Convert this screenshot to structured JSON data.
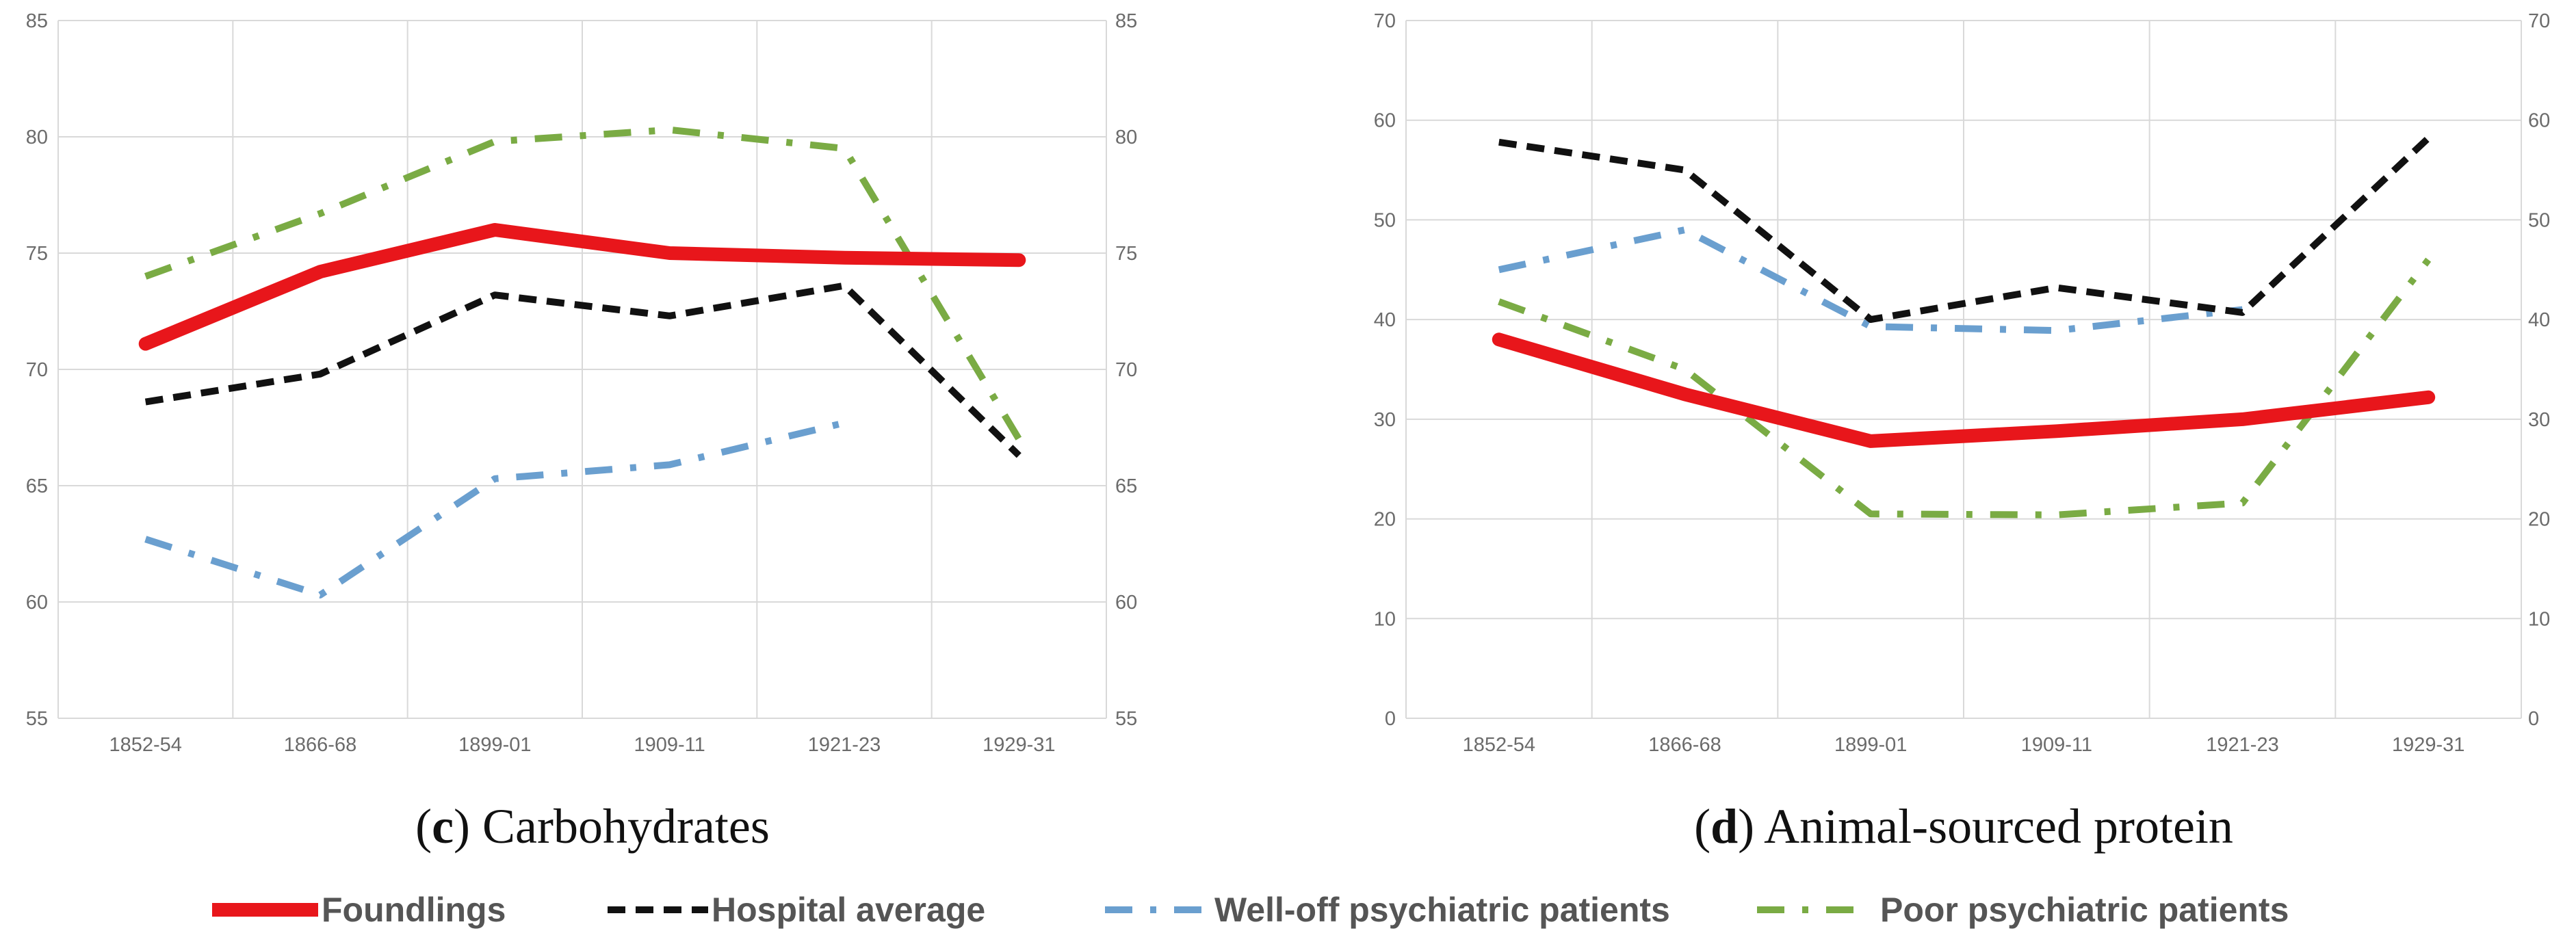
{
  "chart_data": [
    {
      "type": "line",
      "caption_letter": "c",
      "caption_text": " Carbohydrates",
      "categories": [
        "1852-54",
        "1866-68",
        "1899-01",
        "1909-11",
        "1921-23",
        "1929-31"
      ],
      "ylim": [
        55,
        85
      ],
      "yticks": [
        55,
        60,
        65,
        70,
        75,
        80,
        85
      ],
      "ytick_labels": [
        "55",
        "60",
        "65",
        "70",
        "75",
        "80",
        "85"
      ],
      "grid": true,
      "series": [
        {
          "key": "foundlings",
          "name": "Foundlings",
          "values": [
            71.1,
            74.2,
            76.0,
            75.0,
            74.8,
            74.7
          ]
        },
        {
          "key": "hospital",
          "name": "Hospital average",
          "values": [
            68.6,
            69.8,
            73.2,
            72.3,
            73.6,
            66.3
          ]
        },
        {
          "key": "welloff",
          "name": "Well-off psychiatric patients",
          "values": [
            62.7,
            60.3,
            65.3,
            65.9,
            67.7,
            null
          ]
        },
        {
          "key": "poor",
          "name": "Poor psychiatric patients",
          "values": [
            74.0,
            76.7,
            79.8,
            80.3,
            79.5,
            67.0
          ]
        }
      ]
    },
    {
      "type": "line",
      "caption_letter": "d",
      "caption_text": " Animal-sourced protein",
      "categories": [
        "1852-54",
        "1866-68",
        "1899-01",
        "1909-11",
        "1921-23",
        "1929-31"
      ],
      "ylim": [
        0,
        70
      ],
      "yticks": [
        0,
        10,
        20,
        30,
        40,
        50,
        60,
        70
      ],
      "ytick_labels": [
        "0",
        "10",
        "20",
        "30",
        "40",
        "50",
        "60",
        "70"
      ],
      "grid": true,
      "series": [
        {
          "key": "foundlings",
          "name": "Foundlings",
          "values": [
            38.0,
            32.5,
            27.8,
            28.8,
            30.0,
            32.2
          ]
        },
        {
          "key": "hospital",
          "name": "Hospital average",
          "values": [
            57.8,
            55.0,
            40.0,
            43.2,
            40.7,
            58.2
          ]
        },
        {
          "key": "welloff",
          "name": "Well-off psychiatric patients",
          "values": [
            45.0,
            49.0,
            39.3,
            38.9,
            41.0,
            null
          ]
        },
        {
          "key": "poor",
          "name": "Poor psychiatric patients",
          "values": [
            41.8,
            35.0,
            20.5,
            20.4,
            21.6,
            46.0
          ]
        }
      ]
    }
  ],
  "legend": [
    {
      "key": "foundlings",
      "label": "Foundlings"
    },
    {
      "key": "hospital",
      "label": "Hospital average"
    },
    {
      "key": "welloff",
      "label": "Well-off psychiatric patients"
    },
    {
      "key": "poor",
      "label": "Poor psychiatric patients"
    }
  ],
  "colors": {
    "foundlings": "#e8161b",
    "hospital": "#111111",
    "welloff": "#6a9fcf",
    "poor": "#7aab44",
    "grid": "#d9d9d9"
  }
}
